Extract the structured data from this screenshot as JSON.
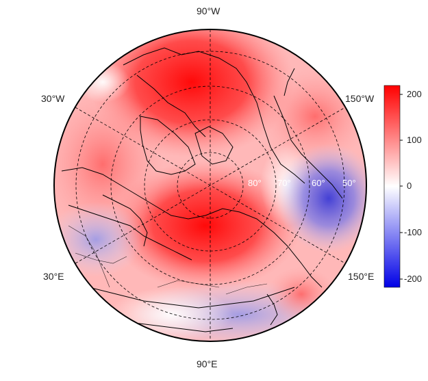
{
  "map": {
    "projection": "north-polar-stereographic",
    "longitude_labels": {
      "top": "90°W",
      "upper_left": "30°W",
      "upper_right": "150°W",
      "lower_left": "30°E",
      "lower_right": "150°E",
      "bottom": "90°E"
    },
    "latitude_labels": [
      "80°",
      "70°",
      "60°",
      "50°"
    ],
    "grid": "dashed",
    "features": [
      "coastlines",
      "country-borders"
    ]
  },
  "colorbar": {
    "ticks": [
      "200",
      "100",
      "0",
      "-100",
      "-200"
    ],
    "tick_values": [
      200,
      100,
      0,
      -100,
      -200
    ],
    "range": [
      -220,
      220
    ],
    "colors": {
      "high": "#ff0000",
      "mid": "#ffffff",
      "low": "#0000e6"
    }
  },
  "field": {
    "max_red_centers": [
      "north-america-canada",
      "east-siberia"
    ],
    "min_blue_centers": [
      "north-pacific-alaska",
      "scandinavia-europe"
    ]
  }
}
